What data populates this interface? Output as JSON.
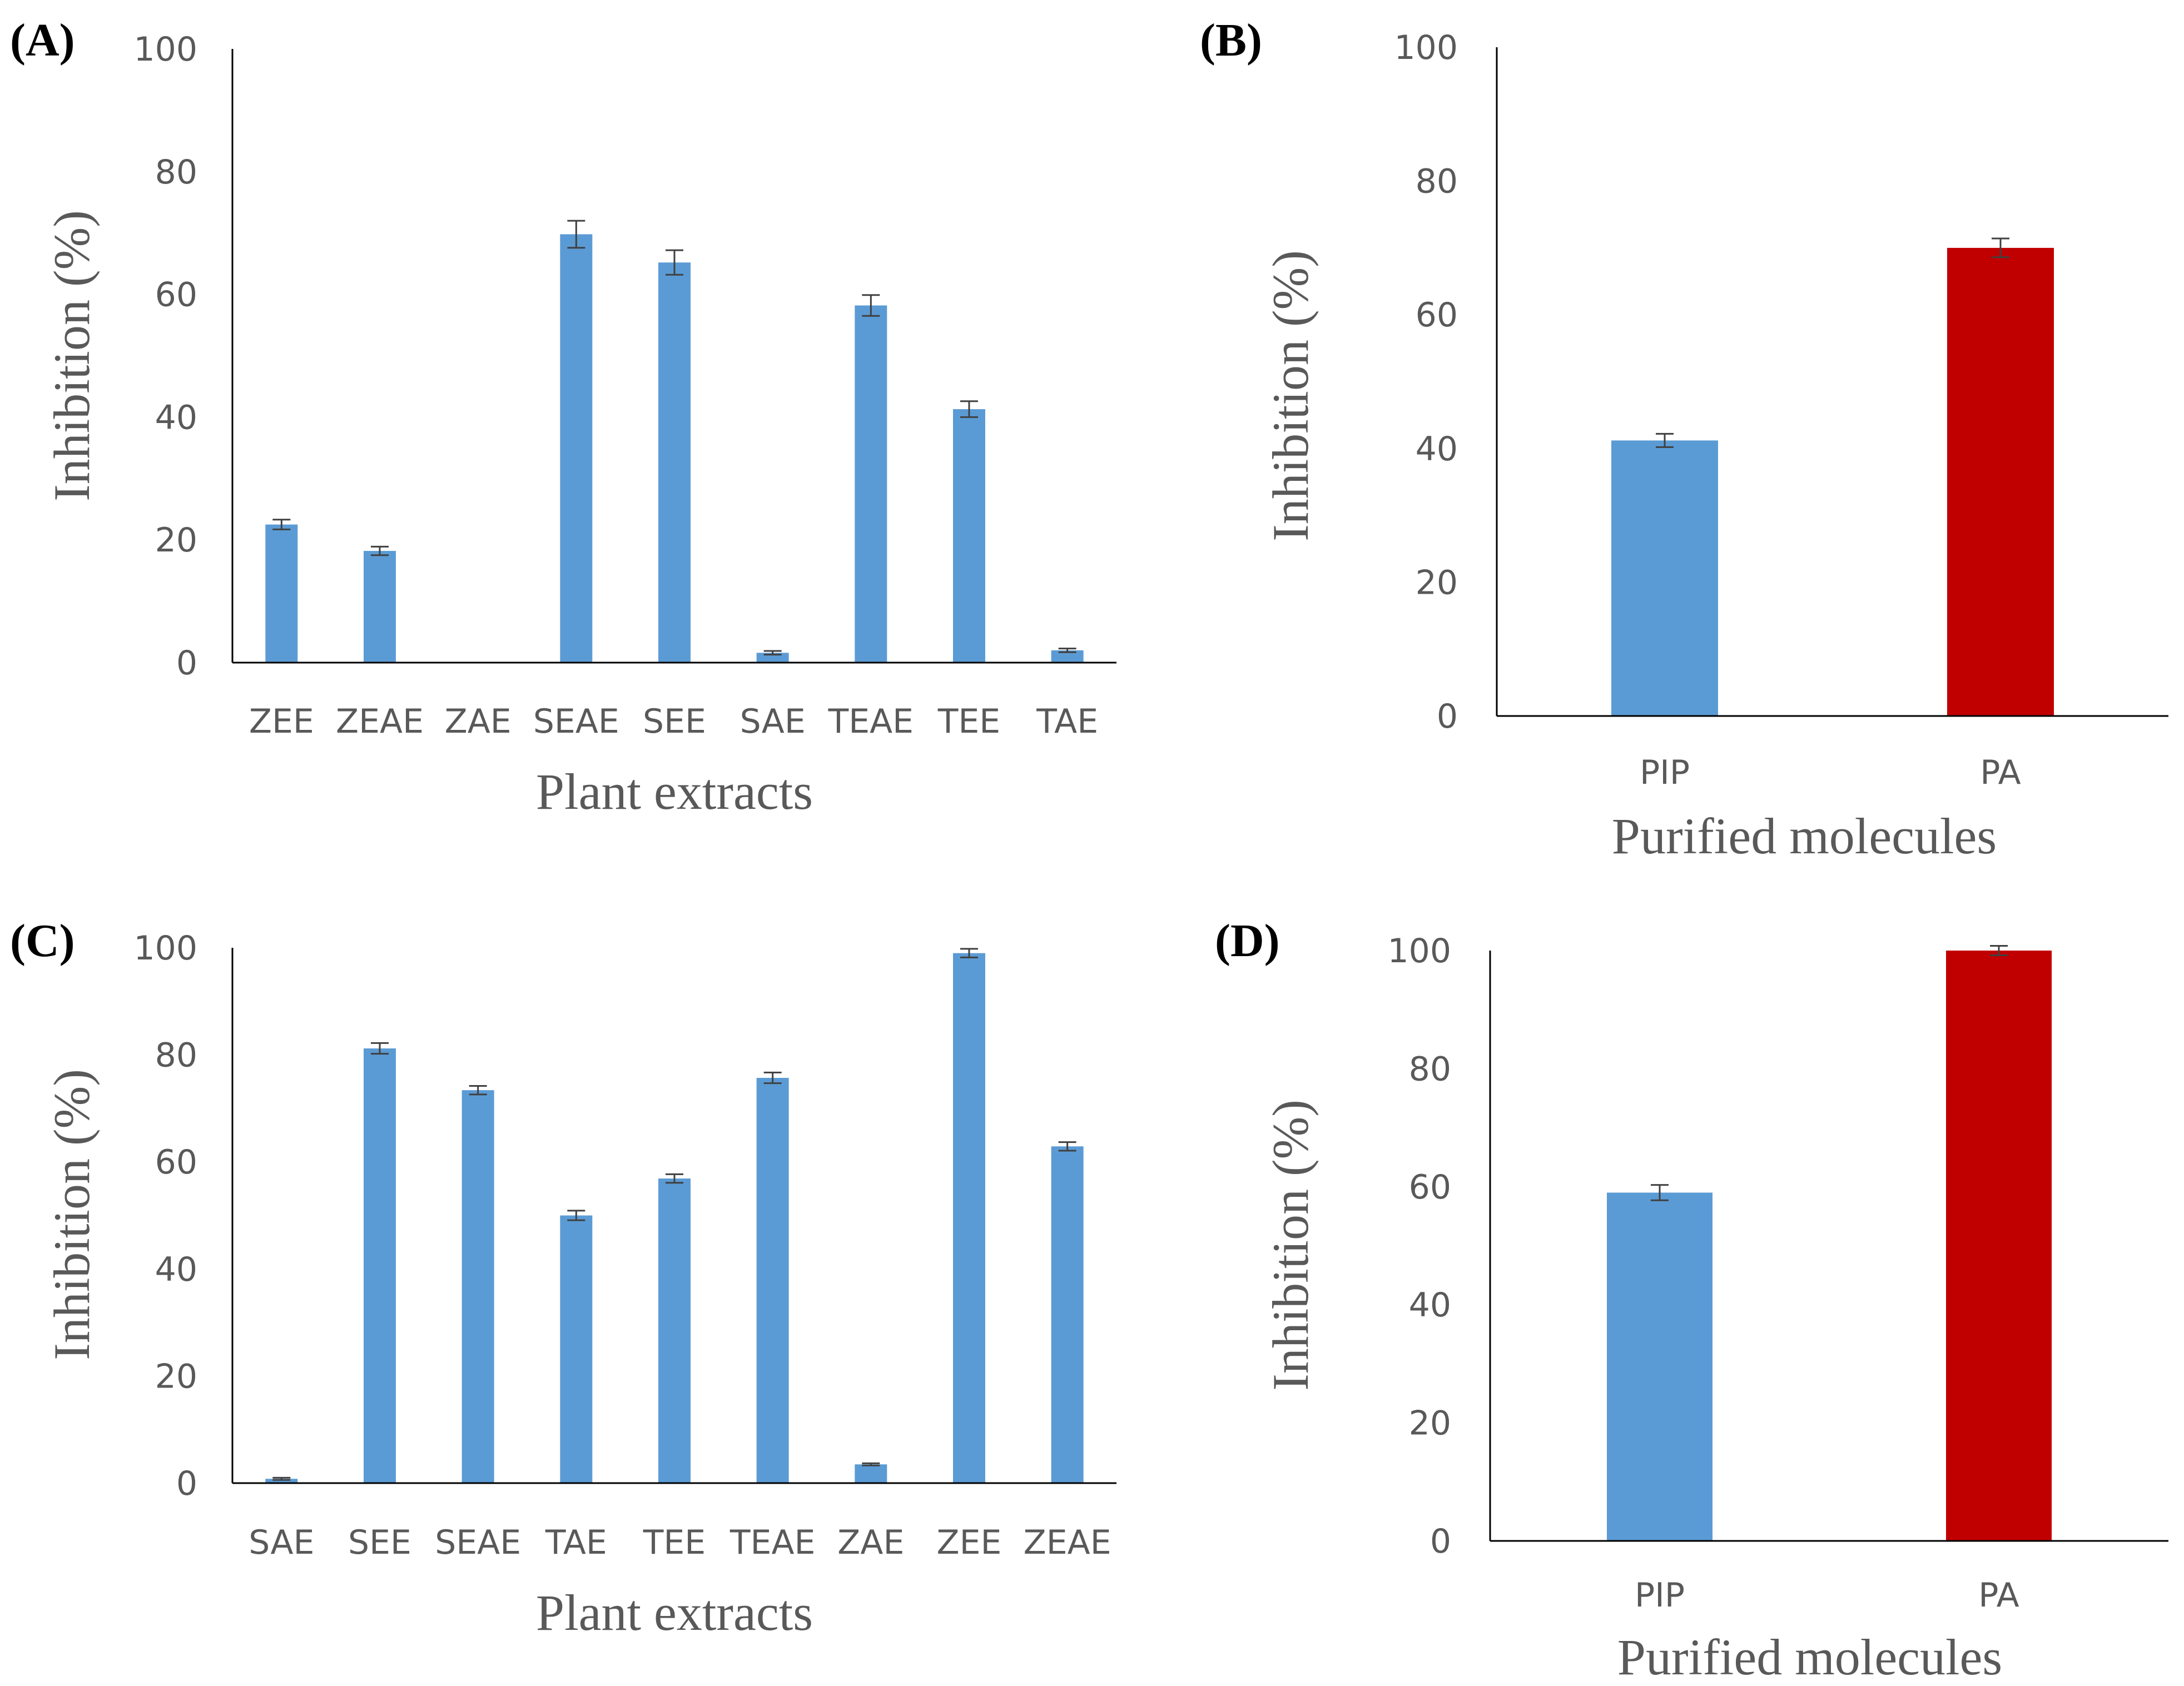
{
  "chart_data": [
    {
      "panel": "(A)",
      "type": "bar",
      "categories": [
        "ZEE",
        "ZEAE",
        "ZAE",
        "SEAE",
        "SEE",
        "SAE",
        "TEAE",
        "TEE",
        "TAE"
      ],
      "values": [
        22.5,
        18.2,
        0,
        69.8,
        65.2,
        1.6,
        58.2,
        41.3,
        2.0
      ],
      "errors": [
        0.8,
        0.7,
        0,
        2.2,
        2.0,
        0.3,
        1.7,
        1.3,
        0.3
      ],
      "colors": [
        "#5b9bd5",
        "#5b9bd5",
        "#5b9bd5",
        "#5b9bd5",
        "#5b9bd5",
        "#5b9bd5",
        "#5b9bd5",
        "#5b9bd5",
        "#5b9bd5"
      ],
      "xlabel": "Plant extracts",
      "ylabel": "Inhibition (%)",
      "ylim": [
        0,
        100
      ],
      "yticks": [
        0,
        20,
        40,
        60,
        80,
        100
      ]
    },
    {
      "panel": "(B)",
      "type": "bar",
      "categories": [
        "PIP",
        "PA"
      ],
      "values": [
        41.2,
        70.0
      ],
      "errors": [
        1.0,
        1.4
      ],
      "colors": [
        "#5b9bd5",
        "#c00000"
      ],
      "xlabel": "Purified molecules",
      "ylabel": "Inhibition (%)",
      "ylim": [
        0,
        100
      ],
      "yticks": [
        0,
        20,
        40,
        60,
        80,
        100
      ]
    },
    {
      "panel": "(C)",
      "type": "bar",
      "categories": [
        "SAE",
        "SEE",
        "SEAE",
        "TAE",
        "TEE",
        "TEAE",
        "ZAE",
        "ZEE",
        "ZEAE"
      ],
      "values": [
        0.8,
        81.2,
        73.4,
        50.0,
        56.9,
        75.7,
        3.5,
        99.0,
        62.9
      ],
      "errors": [
        0.2,
        1.0,
        0.8,
        0.9,
        0.8,
        1.0,
        0.2,
        0.8,
        0.8
      ],
      "colors": [
        "#5b9bd5",
        "#5b9bd5",
        "#5b9bd5",
        "#5b9bd5",
        "#5b9bd5",
        "#5b9bd5",
        "#5b9bd5",
        "#5b9bd5",
        "#5b9bd5"
      ],
      "xlabel": "Plant extracts",
      "ylabel": "Inhibition (%)",
      "ylim": [
        0,
        100
      ],
      "yticks": [
        0,
        20,
        40,
        60,
        80,
        100
      ]
    },
    {
      "panel": "(D)",
      "type": "bar",
      "categories": [
        "PIP",
        "PA"
      ],
      "values": [
        59.0,
        100.0
      ],
      "errors": [
        1.3,
        0.8
      ],
      "colors": [
        "#5b9bd5",
        "#c00000"
      ],
      "xlabel": "Purified molecules",
      "ylabel": "Inhibition (%)",
      "ylim": [
        0,
        100
      ],
      "yticks": [
        0,
        20,
        40,
        60,
        80,
        100
      ]
    }
  ]
}
